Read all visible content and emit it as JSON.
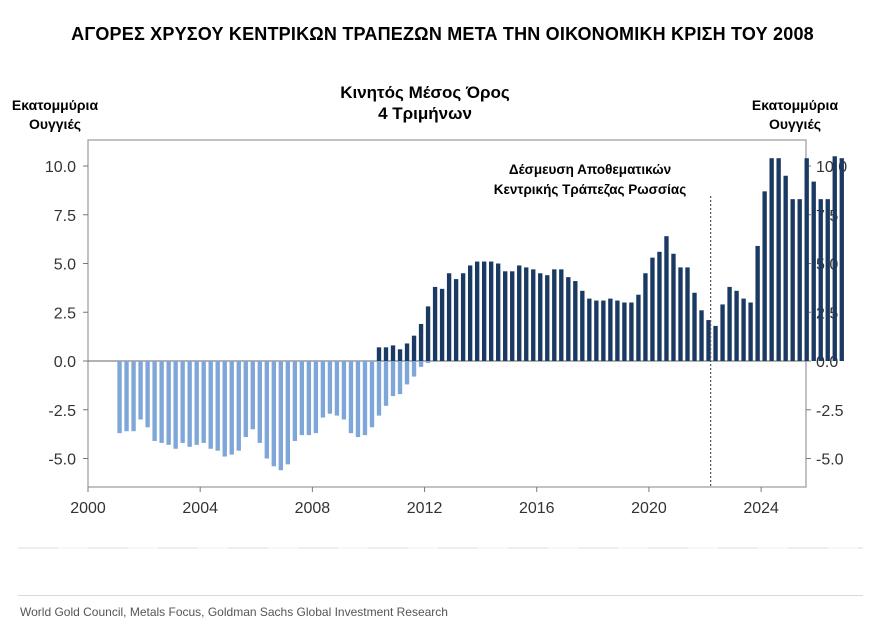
{
  "chart_data": {
    "type": "bar",
    "title": "ΑΓΟΡΕΣ ΧΡΥΣΟΥ ΚΕΝΤΡΙΚΩΝ ΤΡΑΠΕΖΩΝ ΜΕΤΑ ΤΗΝ ΟΙΚΟΝΟΜΙΚΗ ΚΡΙΣΗ ΤΟΥ 2008",
    "subtitle_line1": "Κινητός Μέσος Όρος",
    "subtitle_line2": "4 Τριμήνων",
    "ylabel_left_line1": "Εκατομμύρια",
    "ylabel_left_line2": "Ουγγιές",
    "ylabel_right_line1": "Εκατομμύρια",
    "ylabel_right_line2": "Ουγγιές",
    "annotation_line1": "Δέσμευση Αποθεματικών",
    "annotation_line2": "Κεντρικής Τράπεζας Ρωσσίας",
    "annotation_x": 2022.2,
    "xlim": [
      2000,
      2025.6
    ],
    "ylim": [
      -6.5,
      11.5
    ],
    "xticks": [
      "2000",
      "2004",
      "2008",
      "2012",
      "2016",
      "2020",
      "2024"
    ],
    "yticks": [
      "10.0",
      "7.5",
      "5.0",
      "2.5",
      "0.0",
      "-2.5",
      "-5.0"
    ],
    "series": [
      {
        "color": "#7ea6d8",
        "start": 2001.0,
        "step": 0.25,
        "values": [
          -3.7,
          -3.6,
          -3.6,
          -3.0,
          -3.4,
          -4.1,
          -4.2,
          -4.3,
          -4.5,
          -4.2,
          -4.4,
          -4.3,
          -4.2,
          -4.5,
          -4.6,
          -4.9,
          -4.8,
          -4.6,
          -3.9,
          -3.5,
          -4.2,
          -5.0,
          -5.4,
          -5.6,
          -5.3,
          -4.1,
          -3.8,
          -3.8,
          -3.7,
          -2.9,
          -2.7,
          -2.8,
          -3.0,
          -3.7,
          -3.9,
          -3.8,
          -3.4,
          -2.8,
          -2.3,
          -1.8,
          -1.7,
          -1.2,
          -0.8,
          -0.3,
          -0.1
        ]
      },
      {
        "color": "#1b3a63",
        "start": 2010.25,
        "step": 0.25,
        "values": [
          0.7,
          0.7,
          0.8,
          0.6,
          0.9,
          1.3,
          1.9,
          2.8,
          3.8,
          3.7,
          4.5,
          4.2,
          4.5,
          4.9,
          5.1,
          5.1,
          5.1,
          5.0,
          4.6,
          4.6,
          4.9,
          4.8,
          4.7,
          4.5,
          4.4,
          4.7,
          4.7,
          4.3,
          4.1,
          3.6,
          3.2,
          3.1,
          3.1,
          3.2,
          3.1,
          3.0,
          3.0,
          3.4,
          4.5,
          5.3,
          5.6,
          6.4,
          5.5,
          4.8,
          4.8,
          3.5,
          2.6,
          2.1,
          1.8,
          2.9,
          3.8,
          3.6,
          3.2,
          3.0,
          5.9,
          8.7,
          10.4,
          10.4,
          9.5,
          8.3,
          8.3,
          10.4,
          9.2,
          8.3,
          8.3,
          10.5,
          10.4
        ]
      }
    ]
  },
  "source": "World Gold Council, Metals Focus, Goldman Sachs Global Investment Research"
}
